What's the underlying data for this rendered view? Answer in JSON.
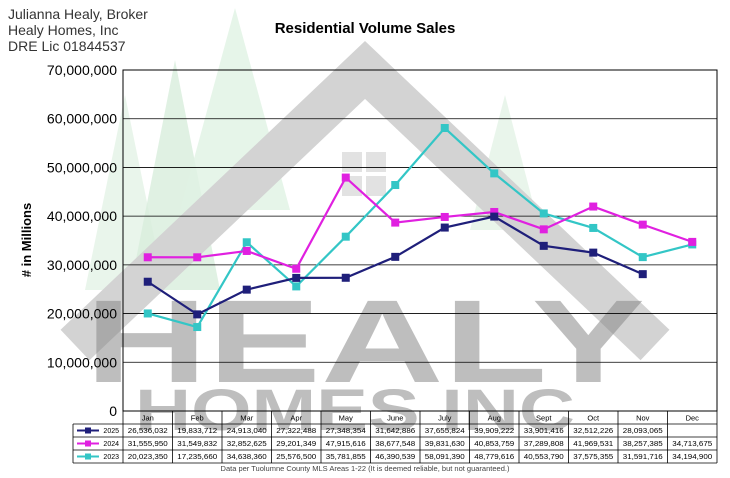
{
  "header": {
    "line1": "Julianna Healy, Broker",
    "line2": "Healy Homes, Inc",
    "line3": "DRE Lic 01844537"
  },
  "watermark": {
    "word1": "HEALY",
    "word2": "HOMES INC"
  },
  "footer_note": "Data per Tuolumne County MLS Areas 1-22 (It is deemed reliable, but not guaranteed.)",
  "colors": {
    "2025": "#1f1f7a",
    "2024": "#e020e0",
    "2023": "#33c6c6"
  },
  "chart_data": {
    "type": "line",
    "title": "Residential Volume Sales",
    "ylabel": "# in Millions",
    "xlabel": "",
    "ylim": [
      0,
      70000000
    ],
    "yticks": [
      "0",
      "10,000,000",
      "20,000,000",
      "30,000,000",
      "40,000,000",
      "50,000,000",
      "60,000,000",
      "70,000,000"
    ],
    "grid": true,
    "categories": [
      "Jan",
      "Feb",
      "Mar",
      "Apr",
      "May",
      "June",
      "July",
      "Aug",
      "Sept",
      "Oct",
      "Nov",
      "Dec"
    ],
    "series": [
      {
        "name": "2025",
        "values": [
          26536032,
          19833712,
          24913040,
          27322488,
          27348354,
          31642886,
          37655824,
          39909222,
          33901416,
          32512226,
          28093065,
          null
        ],
        "labels": [
          "26,536,032",
          "19,833,712",
          "24,913,040",
          "27,322,488",
          "27,348,354",
          "31,642,886",
          "37,655,824",
          "39,909,222",
          "33,901,416",
          "32,512,226",
          "28,093,065",
          ""
        ]
      },
      {
        "name": "2024",
        "values": [
          31555950,
          31549832,
          32852625,
          29201349,
          47915616,
          38677548,
          39831630,
          40853759,
          37289808,
          41969531,
          38257385,
          34713675
        ],
        "labels": [
          "31,555,950",
          "31,549,832",
          "32,852,625",
          "29,201,349",
          "47,915,616",
          "38,677,548",
          "39,831,630",
          "40,853,759",
          "37,289,808",
          "41,969,531",
          "38,257,385",
          "34,713,675"
        ]
      },
      {
        "name": "2023",
        "values": [
          20023350,
          17235660,
          34638360,
          25576500,
          35781855,
          46390539,
          58091390,
          48779616,
          40553790,
          37575355,
          31591716,
          34194900
        ],
        "labels": [
          "20,023,350",
          "17,235,660",
          "34,638,360",
          "25,576,500",
          "35,781,855",
          "46,390,539",
          "58,091,390",
          "48,779,616",
          "40,553,790",
          "37,575,355",
          "31,591,716",
          "34,194,900"
        ]
      }
    ]
  }
}
